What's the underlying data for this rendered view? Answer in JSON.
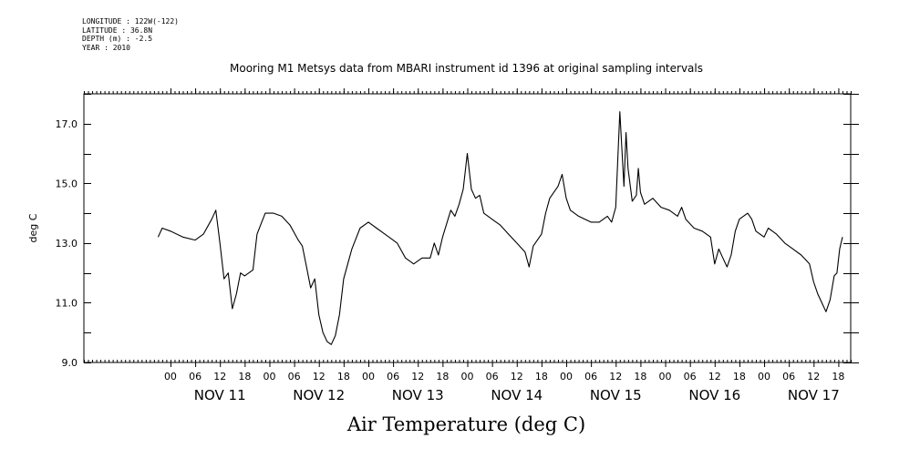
{
  "meta": {
    "longitude": "LONGITUDE : 122W(-122)",
    "latitude": "LATITUDE : 36.8N",
    "depth": "DEPTH (m) : -2.5",
    "year": "YEAR : 2010"
  },
  "chart_data": {
    "type": "line",
    "title": "Mooring M1 Metsys data from MBARI instrument id 1396 at original sampling intervals",
    "xlabel": "Air Temperature (deg C)",
    "ylabel": "deg C",
    "ylim": [
      9.0,
      18.0
    ],
    "y_ticks": [
      "9.0",
      "11.0",
      "13.0",
      "15.0",
      "17.0"
    ],
    "x_range_hours": [
      -21,
      165
    ],
    "x_hour_ticks": [
      "00",
      "06",
      "12",
      "18",
      "00",
      "06",
      "12",
      "18",
      "00",
      "06",
      "12",
      "18",
      "00",
      "06",
      "12",
      "18",
      "00",
      "06",
      "12",
      "18",
      "00",
      "06",
      "12",
      "18",
      "00",
      "06",
      "12",
      "18"
    ],
    "day_labels": [
      "NOV 11",
      "NOV 12",
      "NOV 13",
      "NOV 14",
      "NOV 15",
      "NOV 16",
      "NOV 17"
    ],
    "grid": false,
    "series": [
      {
        "name": "",
        "color": "#000000",
        "points": [
          [
            "NOV 10 21:00",
            13.2
          ],
          [
            "NOV 10 22:00",
            13.5
          ],
          [
            "NOV 11 00:00",
            13.4
          ],
          [
            "NOV 11 03:00",
            13.2
          ],
          [
            "NOV 11 06:00",
            13.1
          ],
          [
            "NOV 11 08:00",
            13.3
          ],
          [
            "NOV 11 10:00",
            13.8
          ],
          [
            "NOV 11 11:00",
            14.1
          ],
          [
            "NOV 11 12:00",
            13.0
          ],
          [
            "NOV 11 13:00",
            11.8
          ],
          [
            "NOV 11 14:00",
            12.0
          ],
          [
            "NOV 11 15:00",
            10.8
          ],
          [
            "NOV 11 16:00",
            11.3
          ],
          [
            "NOV 11 17:00",
            12.0
          ],
          [
            "NOV 11 18:00",
            11.9
          ],
          [
            "NOV 11 20:00",
            12.1
          ],
          [
            "NOV 11 21:00",
            13.3
          ],
          [
            "NOV 11 23:00",
            14.0
          ],
          [
            "NOV 12 01:00",
            14.0
          ],
          [
            "NOV 12 03:00",
            13.9
          ],
          [
            "NOV 12 05:00",
            13.6
          ],
          [
            "NOV 12 07:00",
            13.1
          ],
          [
            "NOV 12 08:00",
            12.9
          ],
          [
            "NOV 12 09:00",
            12.2
          ],
          [
            "NOV 12 10:00",
            11.5
          ],
          [
            "NOV 12 11:00",
            11.8
          ],
          [
            "NOV 12 12:00",
            10.6
          ],
          [
            "NOV 12 13:00",
            10.0
          ],
          [
            "NOV 12 14:00",
            9.7
          ],
          [
            "NOV 12 15:00",
            9.6
          ],
          [
            "NOV 12 16:00",
            9.9
          ],
          [
            "NOV 12 17:00",
            10.6
          ],
          [
            "NOV 12 18:00",
            11.8
          ],
          [
            "NOV 12 20:00",
            12.8
          ],
          [
            "NOV 12 22:00",
            13.5
          ],
          [
            "NOV 13 00:00",
            13.7
          ],
          [
            "NOV 13 02:00",
            13.5
          ],
          [
            "NOV 13 05:00",
            13.2
          ],
          [
            "NOV 13 07:00",
            13.0
          ],
          [
            "NOV 13 09:00",
            12.5
          ],
          [
            "NOV 13 11:00",
            12.3
          ],
          [
            "NOV 13 13:00",
            12.5
          ],
          [
            "NOV 13 15:00",
            12.5
          ],
          [
            "NOV 13 16:00",
            13.0
          ],
          [
            "NOV 13 17:00",
            12.6
          ],
          [
            "NOV 13 18:00",
            13.2
          ],
          [
            "NOV 13 20:00",
            14.1
          ],
          [
            "NOV 13 21:00",
            13.9
          ],
          [
            "NOV 13 22:00",
            14.3
          ],
          [
            "NOV 13 23:00",
            14.8
          ],
          [
            "NOV 14 00:00",
            16.0
          ],
          [
            "NOV 14 01:00",
            14.8
          ],
          [
            "NOV 14 02:00",
            14.5
          ],
          [
            "NOV 14 03:00",
            14.6
          ],
          [
            "NOV 14 04:00",
            14.0
          ],
          [
            "NOV 14 06:00",
            13.8
          ],
          [
            "NOV 14 08:00",
            13.6
          ],
          [
            "NOV 14 10:00",
            13.3
          ],
          [
            "NOV 14 12:00",
            13.0
          ],
          [
            "NOV 14 14:00",
            12.7
          ],
          [
            "NOV 14 15:00",
            12.2
          ],
          [
            "NOV 14 16:00",
            12.9
          ],
          [
            "NOV 14 18:00",
            13.3
          ],
          [
            "NOV 14 19:00",
            14.0
          ],
          [
            "NOV 14 20:00",
            14.5
          ],
          [
            "NOV 14 22:00",
            14.9
          ],
          [
            "NOV 14 23:00",
            15.3
          ],
          [
            "NOV 15 00:00",
            14.5
          ],
          [
            "NOV 15 01:00",
            14.1
          ],
          [
            "NOV 15 03:00",
            13.9
          ],
          [
            "NOV 15 06:00",
            13.7
          ],
          [
            "NOV 15 08:00",
            13.7
          ],
          [
            "NOV 15 10:00",
            13.9
          ],
          [
            "NOV 15 11:00",
            13.7
          ],
          [
            "NOV 15 12:00",
            14.2
          ],
          [
            "NOV 15 13:00",
            17.4
          ],
          [
            "NOV 15 14:00",
            14.9
          ],
          [
            "NOV 15 14:30",
            16.7
          ],
          [
            "NOV 15 15:00",
            15.5
          ],
          [
            "NOV 15 16:00",
            14.4
          ],
          [
            "NOV 15 17:00",
            14.6
          ],
          [
            "NOV 15 17:30",
            15.5
          ],
          [
            "NOV 15 18:00",
            14.7
          ],
          [
            "NOV 15 19:00",
            14.3
          ],
          [
            "NOV 15 21:00",
            14.5
          ],
          [
            "NOV 15 23:00",
            14.2
          ],
          [
            "NOV 16 01:00",
            14.1
          ],
          [
            "NOV 16 03:00",
            13.9
          ],
          [
            "NOV 16 04:00",
            14.2
          ],
          [
            "NOV 16 05:00",
            13.8
          ],
          [
            "NOV 16 07:00",
            13.5
          ],
          [
            "NOV 16 09:00",
            13.4
          ],
          [
            "NOV 16 11:00",
            13.2
          ],
          [
            "NOV 16 12:00",
            12.3
          ],
          [
            "NOV 16 13:00",
            12.8
          ],
          [
            "NOV 16 14:00",
            12.5
          ],
          [
            "NOV 16 15:00",
            12.2
          ],
          [
            "NOV 16 16:00",
            12.6
          ],
          [
            "NOV 16 17:00",
            13.4
          ],
          [
            "NOV 16 18:00",
            13.8
          ],
          [
            "NOV 16 20:00",
            14.0
          ],
          [
            "NOV 16 21:00",
            13.8
          ],
          [
            "NOV 16 22:00",
            13.4
          ],
          [
            "NOV 17 00:00",
            13.2
          ],
          [
            "NOV 17 01:00",
            13.5
          ],
          [
            "NOV 17 03:00",
            13.3
          ],
          [
            "NOV 17 05:00",
            13.0
          ],
          [
            "NOV 17 07:00",
            12.8
          ],
          [
            "NOV 17 09:00",
            12.6
          ],
          [
            "NOV 17 11:00",
            12.3
          ],
          [
            "NOV 17 12:00",
            11.7
          ],
          [
            "NOV 17 13:00",
            11.3
          ],
          [
            "NOV 17 14:00",
            11.0
          ],
          [
            "NOV 17 15:00",
            10.7
          ],
          [
            "NOV 17 16:00",
            11.1
          ],
          [
            "NOV 17 17:00",
            11.9
          ],
          [
            "NOV 17 17:40",
            12.0
          ],
          [
            "NOV 17 18:20",
            12.8
          ],
          [
            "NOV 17 19:00",
            13.2
          ]
        ]
      }
    ]
  }
}
